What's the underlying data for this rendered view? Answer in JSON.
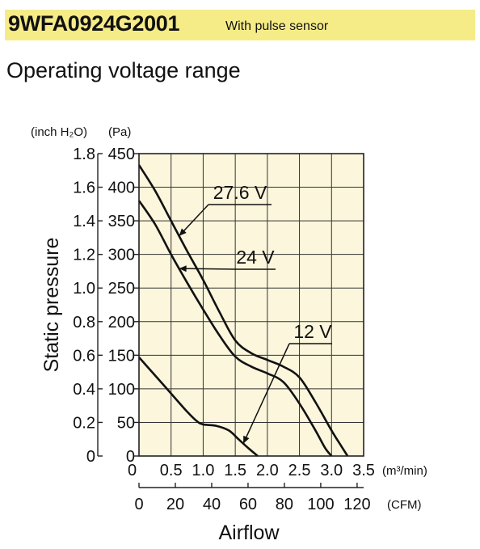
{
  "header": {
    "model": "9WFA0924G2001",
    "subtitle": "With pulse sensor",
    "accent": "#f5ec88"
  },
  "section_title": "Operating voltage range",
  "chart_data": {
    "type": "line",
    "title": "Operating voltage range",
    "ylabel": "Static pressure",
    "xlabel": "Airflow",
    "y_units_left": "(inch H₂O)",
    "y_units_right": "(Pa)",
    "x_units_m3": "(m³/min)",
    "x_units_cfm": "(CFM)",
    "xlim": [
      0,
      3.5
    ],
    "ylim": [
      0,
      450
    ],
    "x_ticks_m3": [
      "0",
      "0.5",
      "1.0",
      "1.5",
      "2.0",
      "2.5",
      "3.0",
      "3.5"
    ],
    "x_ticks_cfm": [
      "0",
      "20",
      "40",
      "60",
      "80",
      "100",
      "120"
    ],
    "cfm_values": [
      0,
      20,
      40,
      60,
      80,
      100,
      120
    ],
    "y_ticks_pa": [
      "450",
      "400",
      "350",
      "300",
      "250",
      "200",
      "150",
      "100",
      "50",
      "0"
    ],
    "y_ticks_inch": [
      "1.8",
      "1.6",
      "1.4",
      "1.2",
      "1.0",
      "0.8",
      "0.6",
      "0.4",
      "0.2",
      "0"
    ],
    "plot_bg": "#fbf6dc",
    "series": [
      {
        "name": "27.6 V",
        "x": [
          0,
          0.25,
          0.5,
          0.75,
          1.0,
          1.25,
          1.5,
          1.75,
          2.0,
          2.25,
          2.5,
          2.75,
          3.0,
          3.15,
          3.25
        ],
        "y": [
          433,
          395,
          350,
          305,
          262,
          215,
          172,
          153,
          143,
          133,
          117,
          80,
          38,
          15,
          0
        ]
      },
      {
        "name": "24 V",
        "x": [
          0,
          0.25,
          0.5,
          0.75,
          1.0,
          1.25,
          1.5,
          1.75,
          2.0,
          2.25,
          2.5,
          2.75,
          2.9,
          3.0
        ],
        "y": [
          380,
          345,
          300,
          258,
          218,
          180,
          148,
          133,
          123,
          110,
          78,
          38,
          12,
          0
        ]
      },
      {
        "name": "12 V",
        "x": [
          0,
          0.25,
          0.5,
          0.75,
          0.9,
          1.0,
          1.2,
          1.4,
          1.55,
          1.7,
          1.85
        ],
        "y": [
          147,
          120,
          93,
          66,
          52,
          47,
          45,
          38,
          25,
          12,
          0
        ]
      }
    ]
  }
}
